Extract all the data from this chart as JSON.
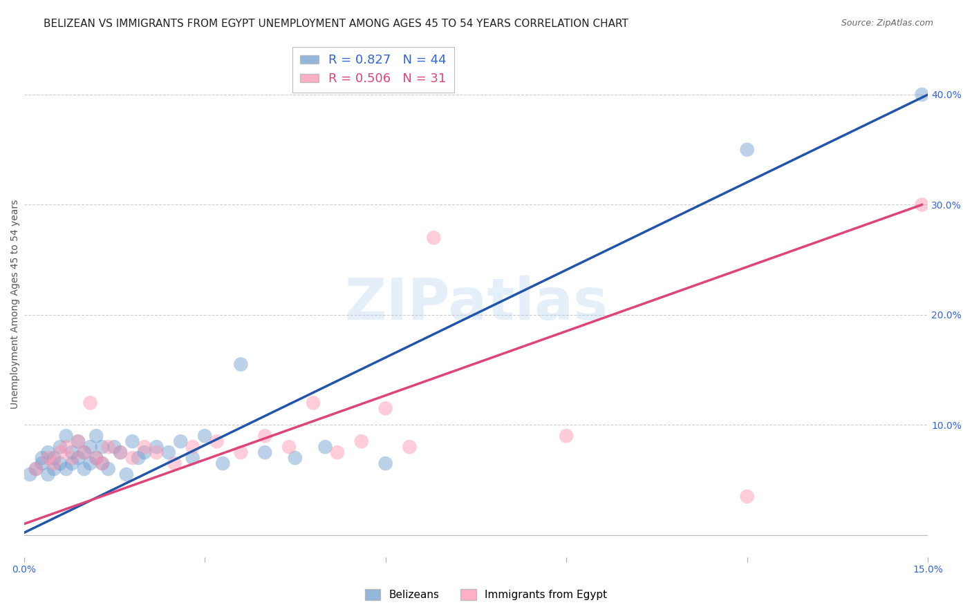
{
  "title": "BELIZEAN VS IMMIGRANTS FROM EGYPT UNEMPLOYMENT AMONG AGES 45 TO 54 YEARS CORRELATION CHART",
  "source": "Source: ZipAtlas.com",
  "ylabel": "Unemployment Among Ages 45 to 54 years",
  "xlim": [
    0.0,
    0.15
  ],
  "ylim": [
    -0.02,
    0.44
  ],
  "right_yticks": [
    0.0,
    0.1,
    0.2,
    0.3,
    0.4
  ],
  "right_yticklabels": [
    "",
    "10.0%",
    "20.0%",
    "30.0%",
    "40.0%"
  ],
  "xticks": [
    0.0,
    0.03,
    0.06,
    0.09,
    0.12,
    0.15
  ],
  "xticklabels": [
    "0.0%",
    "",
    "",
    "",
    "",
    "15.0%"
  ],
  "watermark": "ZIPatlas",
  "blue_R": 0.827,
  "blue_N": 44,
  "pink_R": 0.506,
  "pink_N": 31,
  "blue_color": "#6699CC",
  "pink_color": "#FF8FAB",
  "blue_line_color": "#2255AA",
  "pink_line_color": "#DD4477",
  "blue_x": [
    0.001,
    0.002,
    0.003,
    0.003,
    0.004,
    0.004,
    0.005,
    0.005,
    0.006,
    0.006,
    0.007,
    0.007,
    0.008,
    0.008,
    0.009,
    0.009,
    0.01,
    0.01,
    0.011,
    0.011,
    0.012,
    0.012,
    0.013,
    0.013,
    0.014,
    0.015,
    0.016,
    0.017,
    0.018,
    0.019,
    0.02,
    0.022,
    0.024,
    0.026,
    0.028,
    0.03,
    0.033,
    0.036,
    0.04,
    0.045,
    0.05,
    0.06,
    0.12,
    0.149
  ],
  "blue_y": [
    0.055,
    0.06,
    0.065,
    0.07,
    0.055,
    0.075,
    0.06,
    0.07,
    0.065,
    0.08,
    0.06,
    0.09,
    0.065,
    0.075,
    0.07,
    0.085,
    0.06,
    0.075,
    0.065,
    0.08,
    0.07,
    0.09,
    0.065,
    0.08,
    0.06,
    0.08,
    0.075,
    0.055,
    0.085,
    0.07,
    0.075,
    0.08,
    0.075,
    0.085,
    0.07,
    0.09,
    0.065,
    0.155,
    0.075,
    0.07,
    0.08,
    0.065,
    0.35,
    0.4
  ],
  "pink_x": [
    0.002,
    0.004,
    0.005,
    0.006,
    0.007,
    0.008,
    0.009,
    0.01,
    0.011,
    0.012,
    0.013,
    0.014,
    0.016,
    0.018,
    0.02,
    0.022,
    0.025,
    0.028,
    0.032,
    0.036,
    0.04,
    0.044,
    0.048,
    0.052,
    0.056,
    0.06,
    0.064,
    0.068,
    0.09,
    0.12,
    0.149
  ],
  "pink_y": [
    0.06,
    0.07,
    0.065,
    0.075,
    0.08,
    0.07,
    0.085,
    0.075,
    0.12,
    0.07,
    0.065,
    0.08,
    0.075,
    0.07,
    0.08,
    0.075,
    0.065,
    0.08,
    0.085,
    0.075,
    0.09,
    0.08,
    0.12,
    0.075,
    0.085,
    0.115,
    0.08,
    0.27,
    0.09,
    0.035,
    0.3
  ],
  "blue_line_x0": 0.0,
  "blue_line_x1": 0.15,
  "blue_line_y0": 0.002,
  "blue_line_y1": 0.4,
  "pink_line_x0": 0.0,
  "pink_line_x1": 0.149,
  "pink_line_y0": 0.01,
  "pink_line_y1": 0.3,
  "background_color": "#ffffff",
  "grid_color": "#cccccc",
  "title_fontsize": 11,
  "axis_label_fontsize": 10,
  "tick_fontsize": 10
}
